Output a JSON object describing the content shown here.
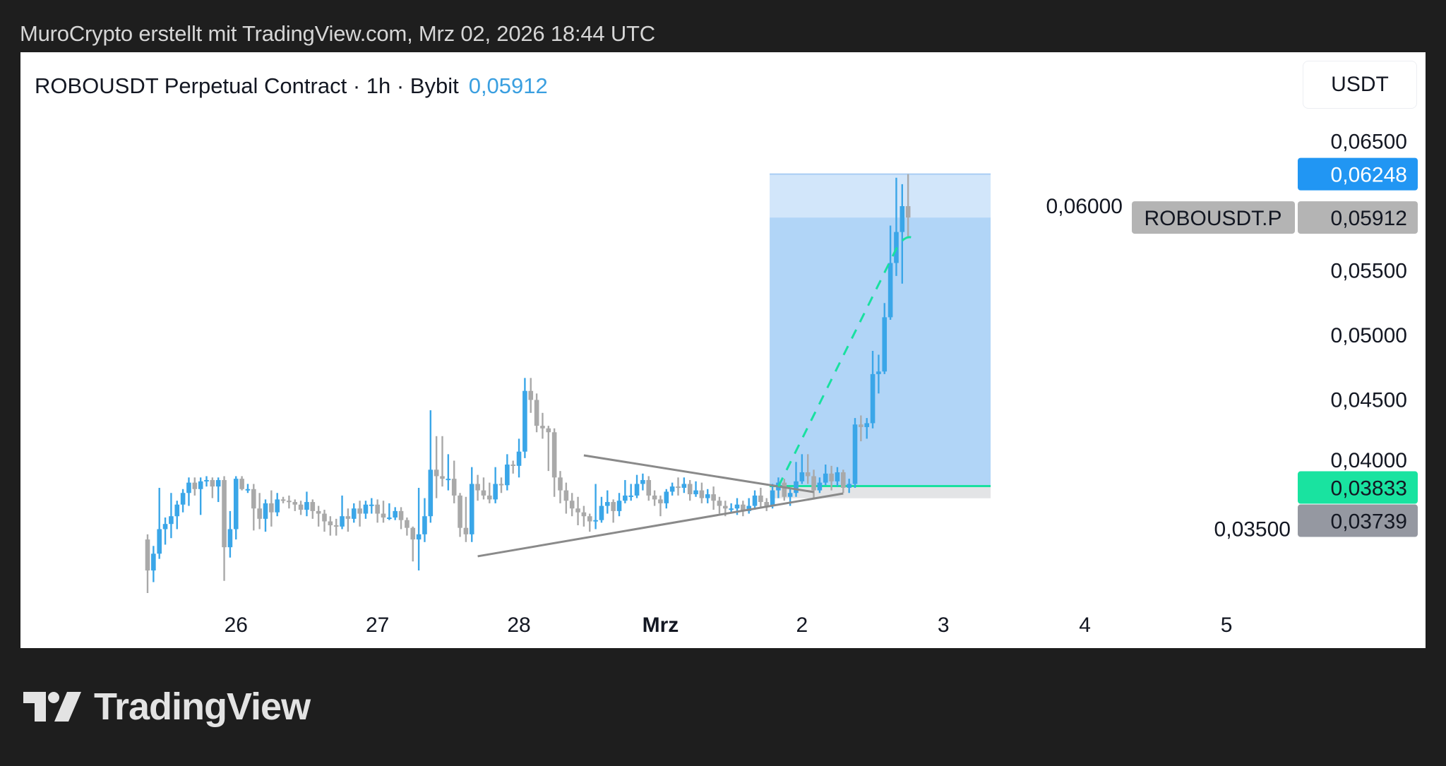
{
  "header": {
    "attribution": "MuroCrypto erstellt mit TradingView.com, Mrz 02, 2026 18:44 UTC"
  },
  "chart_header": {
    "title": "ROBOUSDT Perpetual Contract · 1h · Bybit",
    "last_price": "0,05912"
  },
  "currency_button": "USDT",
  "footer": {
    "logo_text": "TradingView"
  },
  "colors": {
    "up": "#3aa6e8",
    "down": "#a9a9a9",
    "target_zone": "#b1d5f7",
    "target_zone_light": "#d2e6fa",
    "stop_zone": "#e3e4e6",
    "entry_line": "#19e0a0",
    "high_label": "#2196f3",
    "last_label": "#b4b4b4",
    "entry_label": "#19e3a0",
    "stop_label": "#9598a1",
    "trendline": "#8a8a8a"
  },
  "chart_data": {
    "type": "candlestick",
    "symbol_label": "ROBOUSDT.P",
    "interval": "1h",
    "ylim": [
      0.0315,
      0.0675
    ],
    "y_ticks": [
      "0,06500",
      "0,06000",
      "0,05500",
      "0,05000",
      "0,04500",
      "0,04000",
      "0,03500"
    ],
    "y_tick_values": [
      0.065,
      0.06,
      0.055,
      0.05,
      0.045,
      0.04,
      0.035
    ],
    "x_ticks": [
      {
        "label": "26",
        "bold": false
      },
      {
        "label": "27",
        "bold": false
      },
      {
        "label": "28",
        "bold": false
      },
      {
        "label": "Mrz",
        "bold": true
      },
      {
        "label": "2",
        "bold": false
      },
      {
        "label": "3",
        "bold": false
      },
      {
        "label": "4",
        "bold": false
      },
      {
        "label": "5",
        "bold": false
      }
    ],
    "x_tick_candle_index": [
      15,
      39,
      63,
      87,
      111,
      135,
      159,
      183
    ],
    "first_candle": "Feb 25 09:00",
    "last_candle": "Mrz 02 18:00",
    "open": [
      0.0342,
      0.0318,
      0.0331,
      0.035,
      0.0354,
      0.036,
      0.0369,
      0.0378,
      0.0386,
      0.0381,
      0.0387,
      0.0388,
      0.0383,
      0.0388,
      0.0336,
      0.035,
      0.0389,
      0.0381,
      0.0381,
      0.0366,
      0.0358,
      0.037,
      0.0363,
      0.0373,
      0.0372,
      0.0371,
      0.0369,
      0.0365,
      0.0371,
      0.0364,
      0.0362,
      0.0356,
      0.0353,
      0.0352,
      0.036,
      0.0358,
      0.0366,
      0.0362,
      0.0369,
      0.0369,
      0.0362,
      0.0359,
      0.0359,
      0.0364,
      0.0357,
      0.0351,
      0.0342,
      0.0346,
      0.036,
      0.0396,
      0.0391,
      0.0389,
      0.0389,
      0.0376,
      0.0351,
      0.0346,
      0.0385,
      0.038,
      0.0376,
      0.0373,
      0.0385,
      0.0384,
      0.04,
      0.0399,
      0.041,
      0.0457,
      0.045,
      0.043,
      0.0428,
      0.0425,
      0.039,
      0.038,
      0.0372,
      0.0366,
      0.0363,
      0.036,
      0.0356,
      0.0357,
      0.0368,
      0.0371,
      0.0364,
      0.0372,
      0.0376,
      0.0376,
      0.0385,
      0.0388,
      0.0376,
      0.0373,
      0.037,
      0.0379,
      0.0383,
      0.0382,
      0.0385,
      0.0377,
      0.038,
      0.0374,
      0.0377,
      0.0372,
      0.0368,
      0.0366,
      0.0366,
      0.0369,
      0.0364,
      0.0368,
      0.0376,
      0.0371,
      0.0368,
      0.038,
      0.0386,
      0.0375,
      0.0378,
      0.0387,
      0.0394,
      0.0391,
      0.038,
      0.0386,
      0.0393,
      0.0387,
      0.0394,
      0.0382,
      0.0385,
      0.0431,
      0.0429,
      0.0432,
      0.047,
      0.0472,
      0.0514,
      0.0556,
      0.058,
      0.06
    ],
    "high": [
      0.0346,
      0.0337,
      0.0382,
      0.0359,
      0.0378,
      0.0372,
      0.0381,
      0.039,
      0.039,
      0.039,
      0.0391,
      0.039,
      0.039,
      0.0391,
      0.0364,
      0.0391,
      0.0391,
      0.0385,
      0.0385,
      0.0378,
      0.0373,
      0.038,
      0.0378,
      0.0375,
      0.0376,
      0.0373,
      0.0372,
      0.0379,
      0.0373,
      0.0368,
      0.0365,
      0.036,
      0.0358,
      0.0376,
      0.0366,
      0.037,
      0.0372,
      0.0372,
      0.0374,
      0.0373,
      0.0372,
      0.037,
      0.0367,
      0.0367,
      0.0359,
      0.0352,
      0.0382,
      0.0374,
      0.0442,
      0.0422,
      0.0422,
      0.0408,
      0.0403,
      0.0378,
      0.0375,
      0.0398,
      0.0392,
      0.039,
      0.0386,
      0.0398,
      0.039,
      0.0408,
      0.0403,
      0.042,
      0.0467,
      0.0467,
      0.0455,
      0.044,
      0.043,
      0.0428,
      0.0395,
      0.0386,
      0.0378,
      0.0375,
      0.0368,
      0.0362,
      0.0385,
      0.0375,
      0.038,
      0.0373,
      0.0378,
      0.0388,
      0.0385,
      0.0392,
      0.0393,
      0.0391,
      0.038,
      0.0376,
      0.0381,
      0.0386,
      0.039,
      0.039,
      0.0388,
      0.0387,
      0.0386,
      0.0381,
      0.0383,
      0.0375,
      0.0372,
      0.037,
      0.0374,
      0.0372,
      0.0374,
      0.038,
      0.0382,
      0.0374,
      0.0385,
      0.039,
      0.0389,
      0.0381,
      0.0402,
      0.0408,
      0.0408,
      0.0396,
      0.039,
      0.04,
      0.0399,
      0.0398,
      0.0396,
      0.0389,
      0.0436,
      0.0438,
      0.0436,
      0.0488,
      0.0485,
      0.0525,
      0.0585,
      0.0622,
      0.0617,
      0.06248
    ],
    "low": [
      0.0299,
      0.0309,
      0.0327,
      0.0338,
      0.0343,
      0.035,
      0.0363,
      0.0368,
      0.0376,
      0.0361,
      0.0383,
      0.0374,
      0.0371,
      0.031,
      0.0328,
      0.0342,
      0.038,
      0.0378,
      0.0349,
      0.035,
      0.0348,
      0.0352,
      0.036,
      0.037,
      0.0366,
      0.0364,
      0.0361,
      0.036,
      0.0358,
      0.0352,
      0.0348,
      0.0345,
      0.0345,
      0.035,
      0.0348,
      0.0355,
      0.0352,
      0.0358,
      0.0362,
      0.0355,
      0.0355,
      0.0357,
      0.0357,
      0.035,
      0.0345,
      0.0325,
      0.0318,
      0.034,
      0.0355,
      0.0374,
      0.0383,
      0.038,
      0.037,
      0.0344,
      0.034,
      0.034,
      0.0372,
      0.0373,
      0.037,
      0.037,
      0.0378,
      0.038,
      0.0393,
      0.039,
      0.0405,
      0.044,
      0.0425,
      0.042,
      0.0395,
      0.0375,
      0.037,
      0.0362,
      0.036,
      0.0353,
      0.0352,
      0.0348,
      0.035,
      0.0355,
      0.0362,
      0.0355,
      0.036,
      0.037,
      0.0372,
      0.0374,
      0.038,
      0.0372,
      0.0368,
      0.036,
      0.0366,
      0.0376,
      0.0376,
      0.0378,
      0.0372,
      0.0375,
      0.037,
      0.037,
      0.0365,
      0.0362,
      0.036,
      0.0362,
      0.0361,
      0.036,
      0.0362,
      0.0365,
      0.0366,
      0.0364,
      0.0366,
      0.0374,
      0.0372,
      0.0368,
      0.0375,
      0.0385,
      0.0385,
      0.0374,
      0.0378,
      0.0384,
      0.038,
      0.0383,
      0.0378,
      0.0378,
      0.0382,
      0.0418,
      0.042,
      0.0428,
      0.0455,
      0.047,
      0.0512,
      0.0546,
      0.054,
      0.0575
    ],
    "close": [
      0.0318,
      0.0331,
      0.035,
      0.0354,
      0.036,
      0.0369,
      0.0378,
      0.0386,
      0.0381,
      0.0387,
      0.0388,
      0.0383,
      0.0388,
      0.0336,
      0.035,
      0.0389,
      0.0381,
      0.0381,
      0.0366,
      0.0358,
      0.037,
      0.0363,
      0.0373,
      0.0372,
      0.0371,
      0.0369,
      0.0365,
      0.0371,
      0.0364,
      0.0362,
      0.0356,
      0.0353,
      0.0352,
      0.036,
      0.0358,
      0.0366,
      0.0362,
      0.0369,
      0.0369,
      0.0362,
      0.0359,
      0.0359,
      0.0364,
      0.0357,
      0.0351,
      0.0342,
      0.0346,
      0.036,
      0.0396,
      0.0391,
      0.0389,
      0.0389,
      0.0376,
      0.0351,
      0.0346,
      0.0385,
      0.038,
      0.0376,
      0.0373,
      0.0385,
      0.0384,
      0.04,
      0.0399,
      0.041,
      0.0457,
      0.045,
      0.043,
      0.0428,
      0.0425,
      0.039,
      0.038,
      0.0372,
      0.0366,
      0.0363,
      0.036,
      0.0356,
      0.0357,
      0.0368,
      0.0371,
      0.0364,
      0.0372,
      0.0376,
      0.0376,
      0.0385,
      0.0388,
      0.0376,
      0.0373,
      0.037,
      0.0379,
      0.0383,
      0.0382,
      0.0385,
      0.0377,
      0.038,
      0.0374,
      0.0377,
      0.0372,
      0.0368,
      0.0366,
      0.0366,
      0.0369,
      0.0364,
      0.0368,
      0.0376,
      0.0371,
      0.0368,
      0.038,
      0.0386,
      0.0375,
      0.0378,
      0.0387,
      0.0394,
      0.0391,
      0.038,
      0.0386,
      0.0393,
      0.0387,
      0.0394,
      0.0382,
      0.0385,
      0.0431,
      0.0429,
      0.0432,
      0.047,
      0.0472,
      0.0514,
      0.0556,
      0.058,
      0.06,
      0.05912
    ],
    "long_position": {
      "entry": 0.03833,
      "entry_label": "0,03833",
      "target": 0.06248,
      "target_label": "0,06248",
      "stop": 0.03739,
      "stop_label": "0,03739",
      "start_index": 106,
      "end_index": 143
    },
    "last_price": {
      "value": 0.05912,
      "label": "0,05912"
    },
    "drawings": [
      {
        "kind": "trendline",
        "from": [
          74,
          0.04071
        ],
        "to": [
          113,
          0.03787
        ]
      },
      {
        "kind": "trendline",
        "from": [
          56,
          0.0329
        ],
        "to": [
          118,
          0.03776
        ]
      },
      {
        "kind": "dashed-path",
        "from": [
          107,
          0.0383
        ],
        "to": [
          127,
          0.0567
        ],
        "end": [
          130,
          0.0575
        ]
      }
    ]
  }
}
